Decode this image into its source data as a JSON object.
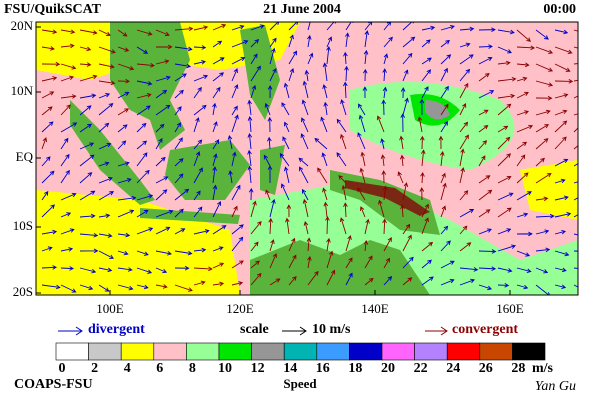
{
  "header": {
    "left": "FSU/QuikSCAT",
    "center": "21 June 2004",
    "right": "00:00"
  },
  "map": {
    "lat_labels": [
      "20N",
      "10N",
      "EQ",
      "10S",
      "20S"
    ],
    "lon_labels": [
      "100E",
      "120E",
      "140E",
      "160E"
    ]
  },
  "legend": {
    "divergent": "divergent",
    "scale": "scale",
    "scale_value": "10 m/s",
    "convergent": "convergent"
  },
  "colorbar": {
    "labels": [
      0,
      2,
      4,
      6,
      8,
      10,
      12,
      14,
      16,
      18,
      20,
      22,
      24,
      26,
      28
    ],
    "unit": "m/s",
    "title": "Speed",
    "colors": [
      "#ffffff",
      "#c8c8c8",
      "#ffff00",
      "#ffc0c8",
      "#96ff96",
      "#00e600",
      "#969696",
      "#00b4b4",
      "#3c9bff",
      "#0000c8",
      "#ff64ff",
      "#b482ff",
      "#ff0000",
      "#c84600",
      "#000000"
    ]
  },
  "footer": {
    "left": "COAPS-FSU",
    "right": "Yan Gu"
  }
}
